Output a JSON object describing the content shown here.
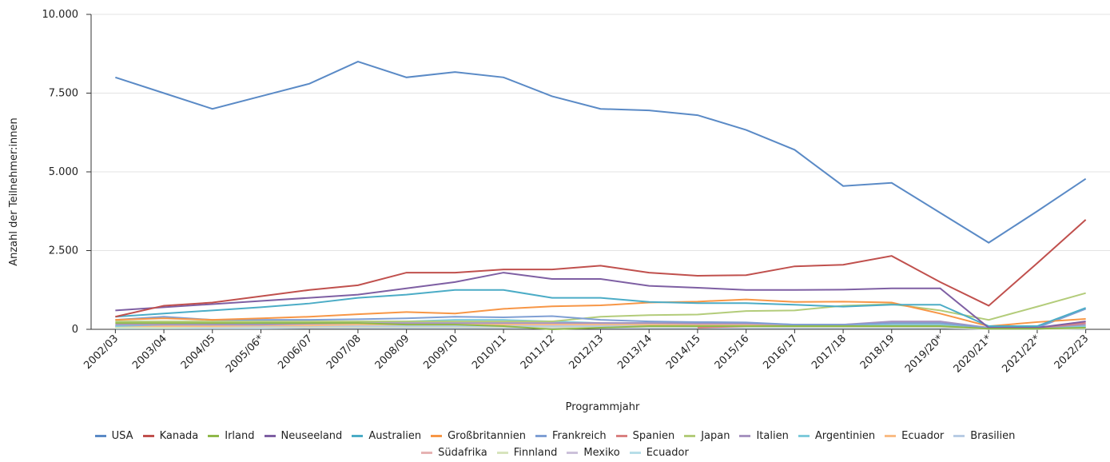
{
  "chart_data": {
    "type": "line",
    "x_label": "Programmjahr",
    "y_label": "Anzahl der Teilnehmer:innen",
    "categories": [
      "2002/03",
      "2003/04",
      "2004/05",
      "2005/06*",
      "2006/07",
      "2007/08",
      "2008/09",
      "2009/10",
      "2010/11",
      "2011/12",
      "2012/13",
      "2013/14",
      "2014/15",
      "2015/16",
      "2016/17",
      "2017/18",
      "2018/19",
      "2019/20*",
      "2020/21*",
      "2021/22*",
      "2022/23"
    ],
    "ylim": [
      0,
      10000
    ],
    "yticks": [
      0,
      {
        "value": 2500,
        "label": "2.500"
      },
      {
        "value": 5000,
        "label": "5.000"
      },
      {
        "value": 7500,
        "label": "7.500"
      },
      {
        "value": 10000,
        "label": "10.000"
      }
    ],
    "grid": true,
    "legend": "bottom",
    "series": [
      {
        "name": "USA",
        "color": "#5a8ac6",
        "values": [
          8000,
          7500,
          7000,
          7400,
          7800,
          8500,
          8000,
          8170,
          8000,
          7400,
          7000,
          6950,
          6800,
          6330,
          5700,
          4550,
          4650,
          3700,
          2750,
          3750,
          4780
        ]
      },
      {
        "name": "Kanada",
        "color": "#c0504d",
        "values": [
          400,
          750,
          850,
          1050,
          1250,
          1400,
          1800,
          1800,
          1900,
          1900,
          2020,
          1800,
          1700,
          1720,
          2000,
          2050,
          2330,
          1500,
          750,
          2100,
          3480
        ]
      },
      {
        "name": "Irland",
        "color": "#8fb84a",
        "values": [
          200,
          200,
          200,
          200,
          200,
          200,
          150,
          150,
          100,
          0,
          50,
          100,
          100,
          100,
          100,
          100,
          100,
          100,
          20,
          20,
          50
        ]
      },
      {
        "name": "Neuseeland",
        "color": "#7e5fa3",
        "values": [
          600,
          700,
          800,
          900,
          1000,
          1100,
          1300,
          1500,
          1800,
          1600,
          1600,
          1380,
          1320,
          1250,
          1250,
          1260,
          1300,
          1300,
          50,
          50,
          250
        ]
      },
      {
        "name": "Australien",
        "color": "#4bacc6",
        "values": [
          400,
          500,
          600,
          700,
          820,
          1000,
          1100,
          1250,
          1250,
          1000,
          1000,
          870,
          830,
          830,
          780,
          720,
          780,
          780,
          100,
          100,
          680
        ]
      },
      {
        "name": "Großbritannien",
        "color": "#f79646",
        "values": [
          300,
          350,
          300,
          350,
          400,
          480,
          550,
          500,
          650,
          730,
          760,
          850,
          880,
          950,
          870,
          880,
          850,
          500,
          100,
          230,
          330
        ]
      },
      {
        "name": "Frankreich",
        "color": "#7f9fd4",
        "values": [
          300,
          400,
          300,
          300,
          300,
          320,
          350,
          400,
          380,
          420,
          300,
          250,
          230,
          220,
          150,
          150,
          200,
          200,
          50,
          50,
          650
        ]
      },
      {
        "name": "Spanien",
        "color": "#d98080",
        "values": [
          null,
          null,
          null,
          null,
          null,
          null,
          null,
          null,
          null,
          null,
          null,
          null,
          50,
          100,
          100,
          150,
          200,
          200,
          50,
          50,
          200
        ]
      },
      {
        "name": "Japan",
        "color": "#b3cc7a",
        "values": [
          250,
          250,
          250,
          250,
          250,
          250,
          250,
          250,
          250,
          250,
          400,
          450,
          470,
          580,
          600,
          750,
          800,
          600,
          300,
          720,
          1150
        ]
      },
      {
        "name": "Italien",
        "color": "#a793c0",
        "values": [
          150,
          150,
          150,
          150,
          180,
          200,
          200,
          200,
          200,
          200,
          200,
          200,
          180,
          180,
          150,
          150,
          250,
          250,
          50,
          50,
          150
        ]
      },
      {
        "name": "Argentinien",
        "color": "#7fcbdb",
        "values": [
          100,
          150,
          150,
          200,
          200,
          250,
          250,
          300,
          300,
          250,
          200,
          200,
          200,
          200,
          150,
          150,
          150,
          150,
          30,
          30,
          100
        ]
      },
      {
        "name": "Ecuador",
        "color": "#f9bc85",
        "values": [
          100,
          100,
          100,
          120,
          120,
          150,
          150,
          150,
          150,
          150,
          150,
          150,
          150,
          150,
          150,
          150,
          150,
          150,
          30,
          30,
          100
        ]
      },
      {
        "name": "Brasilien",
        "color": "#b8cce4",
        "values": [
          100,
          100,
          100,
          100,
          100,
          100,
          100,
          100,
          100,
          100,
          100,
          100,
          100,
          100,
          100,
          100,
          100,
          100,
          20,
          20,
          80
        ]
      },
      {
        "name": "Südafrika",
        "color": "#e6b3b3",
        "values": [
          100,
          120,
          150,
          150,
          150,
          150,
          150,
          150,
          150,
          150,
          150,
          150,
          150,
          150,
          150,
          150,
          150,
          150,
          20,
          20,
          50
        ]
      },
      {
        "name": "Finnland",
        "color": "#d7e4bd",
        "values": [
          50,
          50,
          80,
          80,
          80,
          80,
          80,
          80,
          80,
          80,
          80,
          80,
          80,
          80,
          80,
          80,
          80,
          80,
          10,
          10,
          30
        ]
      },
      {
        "name": "Mexiko",
        "color": "#ccc1da",
        "values": [
          50,
          60,
          60,
          60,
          60,
          60,
          60,
          60,
          60,
          60,
          60,
          60,
          60,
          60,
          60,
          60,
          60,
          60,
          10,
          10,
          30
        ]
      },
      {
        "name": "Ecuador",
        "color": "#b7dee8",
        "values": [
          30,
          30,
          30,
          30,
          40,
          40,
          40,
          40,
          40,
          40,
          40,
          40,
          40,
          40,
          40,
          40,
          40,
          40,
          10,
          10,
          20
        ]
      }
    ]
  }
}
